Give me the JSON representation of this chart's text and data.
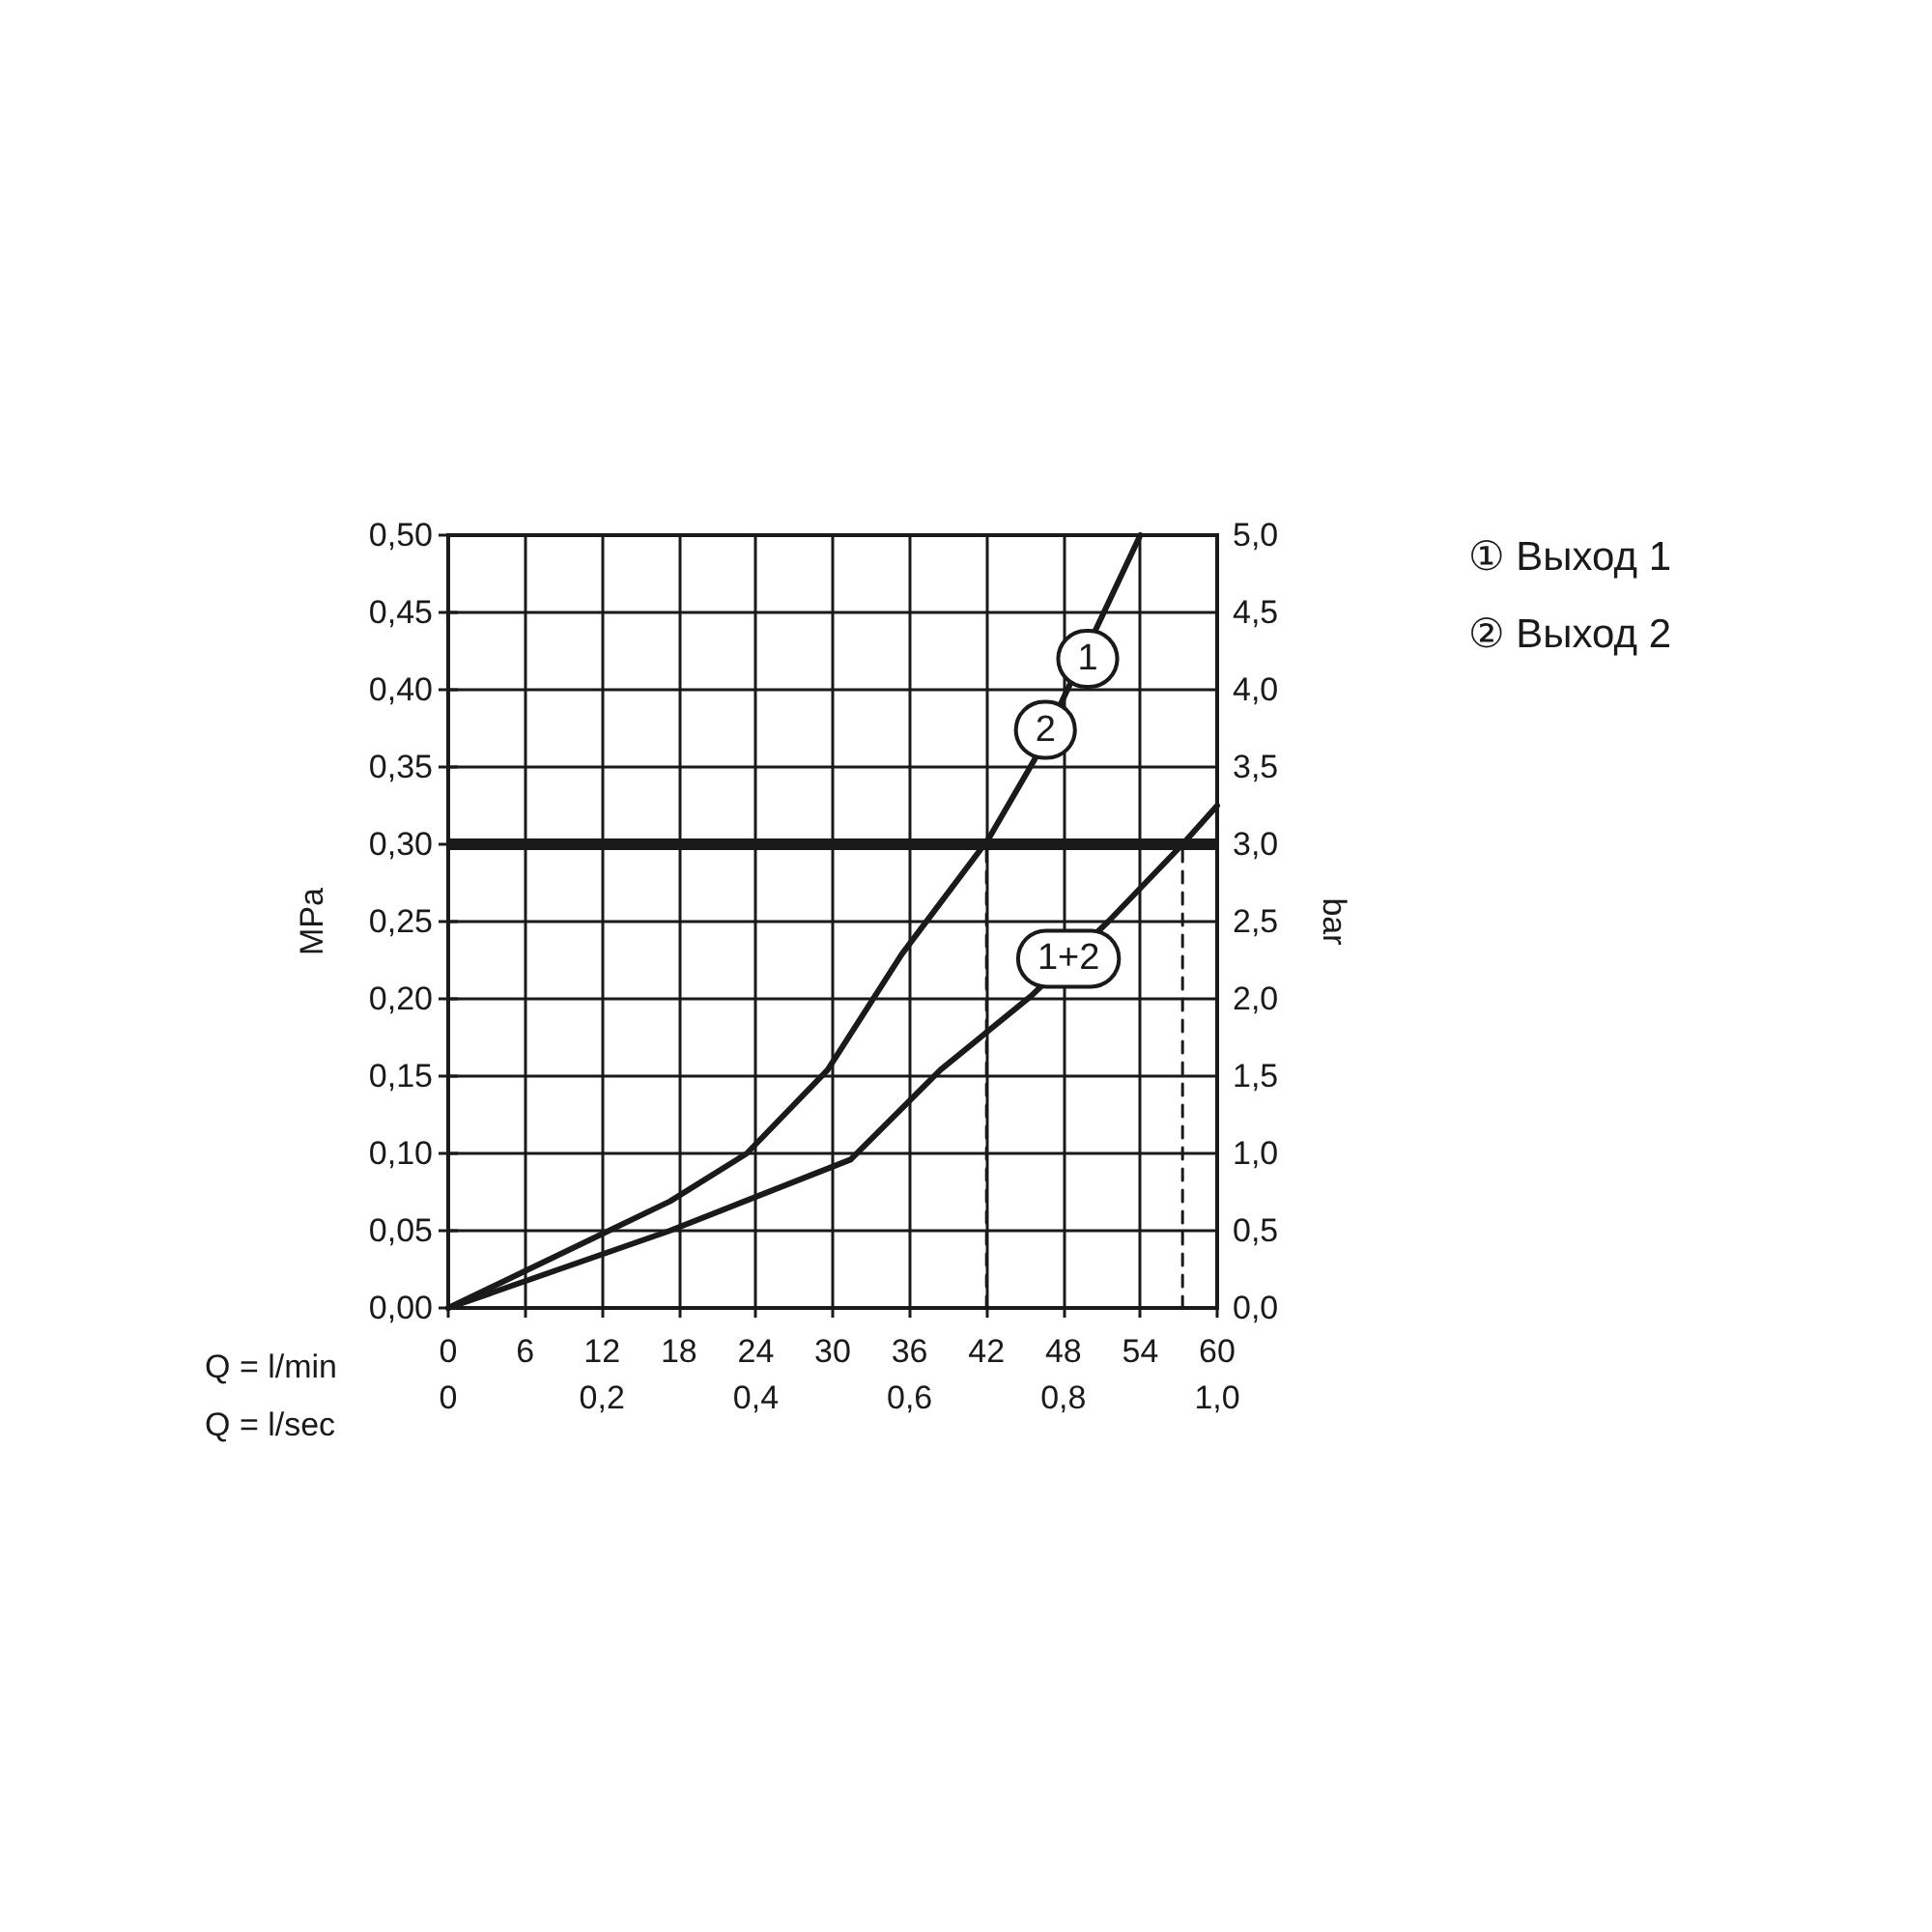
{
  "chart_data": {
    "type": "line",
    "xlabel": "Q = l/min",
    "x2label": "Q = l/sec",
    "ylabel": "MPa",
    "y2label": "bar",
    "xlim": [
      0,
      60
    ],
    "xticks": [
      0,
      6,
      12,
      18,
      24,
      30,
      36,
      42,
      48,
      54,
      60
    ],
    "x2lim": [
      0,
      1
    ],
    "x2ticks": [
      0,
      {
        "value": 0.2,
        "label": "0,2"
      },
      {
        "value": 0.4,
        "label": "0,4"
      },
      {
        "value": 0.6,
        "label": "0,6"
      },
      {
        "value": 0.8,
        "label": "0,8"
      },
      {
        "value": 1,
        "label": "1,0"
      }
    ],
    "ylim": [
      0,
      0.5
    ],
    "yticks": [
      {
        "value": 0,
        "label": "0,00"
      },
      {
        "value": 0.05,
        "label": "0,05"
      },
      {
        "value": 0.1,
        "label": "0,10"
      },
      {
        "value": 0.15,
        "label": "0,15"
      },
      {
        "value": 0.2,
        "label": "0,20"
      },
      {
        "value": 0.25,
        "label": "0,25"
      },
      {
        "value": 0.3,
        "label": "0,30"
      },
      {
        "value": 0.35,
        "label": "0,35"
      },
      {
        "value": 0.4,
        "label": "0,40"
      },
      {
        "value": 0.45,
        "label": "0,45"
      },
      {
        "value": 0.5,
        "label": "0,50"
      }
    ],
    "y2lim": [
      0,
      5
    ],
    "y2ticks": [
      {
        "value": 0,
        "label": "0,0"
      },
      {
        "value": 0.5,
        "label": "0,5"
      },
      {
        "value": 1,
        "label": "1,0"
      },
      {
        "value": 1.5,
        "label": "1,5"
      },
      {
        "value": 2,
        "label": "2,0"
      },
      {
        "value": 2.5,
        "label": "2,5"
      },
      {
        "value": 3,
        "label": "3,0"
      },
      {
        "value": 3.5,
        "label": "3,5"
      },
      {
        "value": 4,
        "label": "4,0"
      },
      {
        "value": 4.5,
        "label": "4,5"
      },
      {
        "value": 5,
        "label": "5,0"
      }
    ],
    "grid": true,
    "marker": "none",
    "series": [
      {
        "color": "#1a1a1a",
        "x": [
          0,
          17.3,
          23.3,
          29.6,
          35.4,
          42.2,
          45.7,
          54
        ],
        "values": [
          0,
          0.069,
          0.1,
          0.154,
          0.229,
          0.304,
          0.354,
          0.5
        ]
      },
      {
        "color": "#1a1a1a",
        "x": [
          0,
          17.3,
          31.4,
          38.4,
          45.5,
          51.5,
          57.3,
          60
        ],
        "values": [
          0,
          0.05,
          0.096,
          0.154,
          0.202,
          0.25,
          0.3,
          0.325
        ]
      },
      {
        "color": "#1a1a1a",
        "line_style": "dashed",
        "x": [
          42,
          42
        ],
        "values": [
          0,
          0.3
        ]
      },
      {
        "color": "#1a1a1a",
        "line_style": "dashed",
        "x": [
          57.3,
          57.3
        ],
        "values": [
          0,
          0.3
        ]
      }
    ],
    "ref_lines": [
      {
        "axis": "y",
        "value": 0.3,
        "color": "#1a1a1a"
      }
    ],
    "annotations": [
      {
        "text": "1",
        "x": 49.9,
        "y": 0.42
      },
      {
        "text": "2",
        "x": 46.6,
        "y": 0.374
      },
      {
        "text": "1+2",
        "x": 48.4,
        "y": 0.226
      },
      "① Выход 1",
      "② Выход 2"
    ]
  }
}
